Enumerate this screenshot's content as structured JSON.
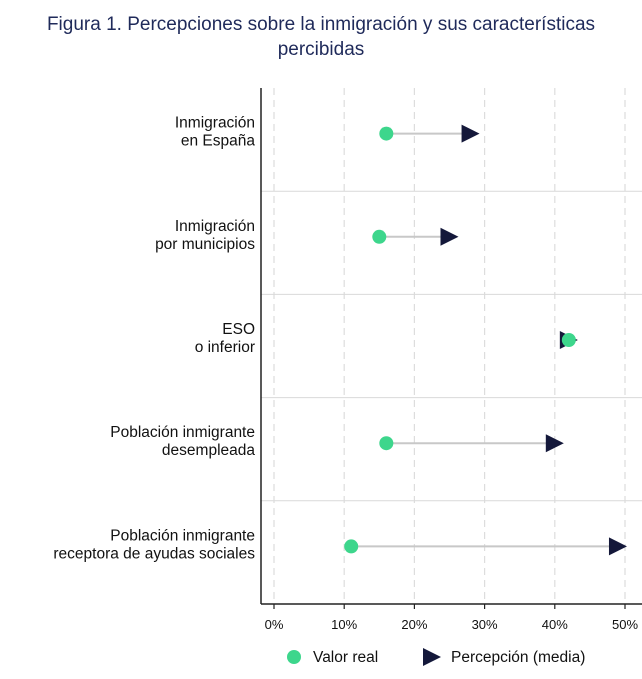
{
  "chart_data": {
    "type": "dot-arrow",
    "title": "Figura 1. Percepciones sobre la inmigración y sus características percibidas",
    "title_lines": [
      "Figura 1. Percepciones sobre la inmigración y sus características",
      "percibidas"
    ],
    "categories": [
      [
        "Inmigración",
        "en España"
      ],
      [
        "Inmigración",
        "por municipios"
      ],
      [
        "ESO",
        "o inferior"
      ],
      [
        "Población inmigrante",
        "desempleada"
      ],
      [
        "Población inmigrante",
        "receptora de ayudas sociales"
      ]
    ],
    "series": [
      {
        "name": "Valor real",
        "values": [
          16,
          15,
          42,
          16,
          11
        ],
        "color": "#3dd68c",
        "marker": "circle"
      },
      {
        "name": "Percepción (media)",
        "values": [
          28,
          25,
          42,
          40,
          49
        ],
        "color": "#14183a",
        "marker": "triangle-right"
      }
    ],
    "xlim": [
      -2,
      52
    ],
    "xticks": [
      0,
      10,
      20,
      30,
      40,
      50
    ],
    "xtick_labels": [
      "0%",
      "10%",
      "20%",
      "30%",
      "40%",
      "50%"
    ],
    "grid": "vertical dashed",
    "legend_position": "bottom",
    "colors": {
      "title": "#1f2a5a",
      "connector": "#c8c8c8",
      "grid": "#dddddd",
      "axis": "#222222"
    }
  }
}
